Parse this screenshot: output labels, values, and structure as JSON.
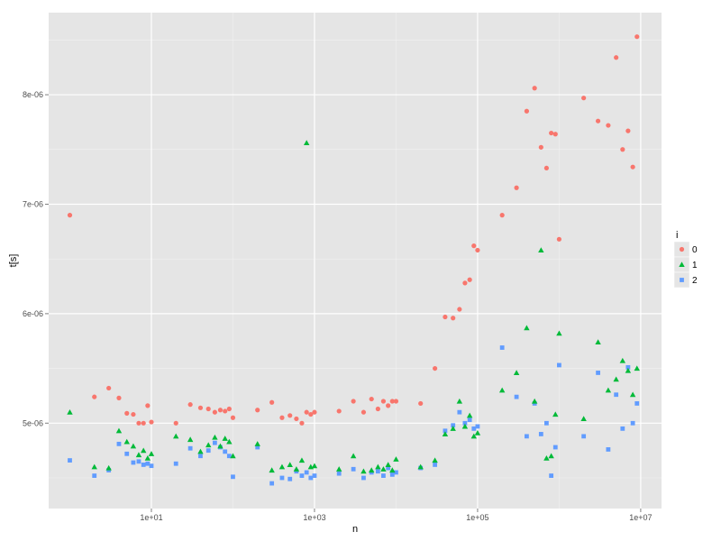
{
  "chart_data": {
    "type": "scatter",
    "xlabel": "n",
    "ylabel": "t[s]",
    "x_scale": "log10",
    "xlim": [
      0.55,
      18000000
    ],
    "ylim": [
      4.22e-06,
      8.75e-06
    ],
    "x_ticks": [
      10,
      1000,
      100000,
      10000000
    ],
    "x_tick_labels": [
      "1e+01",
      "1e+03",
      "1e+05",
      "1e+07"
    ],
    "y_ticks": [
      5e-06,
      6e-06,
      7e-06,
      8e-06
    ],
    "y_tick_labels": [
      "5e-06",
      "6e-06",
      "7e-06",
      "8e-06"
    ],
    "grid": true,
    "legend": {
      "title": "i",
      "position": "right"
    },
    "colors": {
      "panel": "#e5e5e5",
      "grid": "#ffffff",
      "grid_minor": "#f2f2f2"
    },
    "series": [
      {
        "name": "0",
        "color": "#f8766d",
        "shape": "circle",
        "x": [
          1,
          2,
          3,
          4,
          5,
          6,
          7,
          8,
          9,
          10,
          20,
          30,
          40,
          50,
          60,
          70,
          80,
          90,
          100,
          200,
          300,
          400,
          500,
          600,
          700,
          800,
          900,
          1000,
          2000,
          3000,
          4000,
          5000,
          6000,
          7000,
          8000,
          9000,
          10000,
          20000,
          30000,
          40000,
          50000,
          60000,
          70000,
          80000,
          90000,
          100000,
          200000,
          300000,
          400000,
          500000,
          600000,
          700000,
          800000,
          900000,
          1000000,
          2000000,
          3000000,
          4000000,
          5000000,
          6000000,
          7000000,
          8000000,
          9000000
        ],
        "y": [
          6.9e-06,
          5.24e-06,
          5.32e-06,
          5.23e-06,
          5.09e-06,
          5.08e-06,
          5e-06,
          5e-06,
          5.16e-06,
          5.01e-06,
          5e-06,
          5.17e-06,
          5.14e-06,
          5.13e-06,
          5.1e-06,
          5.12e-06,
          5.11e-06,
          5.13e-06,
          5.05e-06,
          5.12e-06,
          5.19e-06,
          5.05e-06,
          5.07e-06,
          5.04e-06,
          5e-06,
          5.1e-06,
          5.08e-06,
          5.1e-06,
          5.11e-06,
          5.2e-06,
          5.1e-06,
          5.22e-06,
          5.13e-06,
          5.2e-06,
          5.16e-06,
          5.2e-06,
          5.2e-06,
          5.18e-06,
          5.5e-06,
          5.97e-06,
          5.96e-06,
          6.04e-06,
          6.28e-06,
          6.31e-06,
          6.62e-06,
          6.58e-06,
          6.9e-06,
          7.15e-06,
          7.85e-06,
          8.06e-06,
          7.52e-06,
          7.33e-06,
          7.65e-06,
          7.64e-06,
          6.68e-06,
          7.97e-06,
          7.76e-06,
          7.72e-06,
          8.34e-06,
          7.5e-06,
          7.67e-06,
          7.34e-06,
          8.53e-06
        ]
      },
      {
        "name": "1",
        "color": "#00ba38",
        "shape": "triangle",
        "x": [
          1,
          2,
          3,
          4,
          5,
          6,
          7,
          8,
          9,
          10,
          20,
          30,
          40,
          50,
          60,
          70,
          80,
          90,
          100,
          200,
          300,
          400,
          500,
          600,
          700,
          800,
          900,
          1000,
          2000,
          3000,
          4000,
          5000,
          6000,
          7000,
          8000,
          9000,
          10000,
          20000,
          30000,
          40000,
          50000,
          60000,
          70000,
          80000,
          90000,
          100000,
          200000,
          300000,
          400000,
          500000,
          600000,
          700000,
          800000,
          900000,
          1000000,
          2000000,
          3000000,
          4000000,
          5000000,
          6000000,
          7000000,
          8000000,
          9000000
        ],
        "y": [
          5.1e-06,
          4.6e-06,
          4.59e-06,
          4.93e-06,
          4.83e-06,
          4.79e-06,
          4.71e-06,
          4.75e-06,
          4.68e-06,
          4.72e-06,
          4.88e-06,
          4.85e-06,
          4.74e-06,
          4.8e-06,
          4.87e-06,
          4.79e-06,
          4.86e-06,
          4.83e-06,
          4.7e-06,
          4.81e-06,
          4.57e-06,
          4.6e-06,
          4.62e-06,
          4.58e-06,
          4.66e-06,
          7.56e-06,
          4.6e-06,
          4.61e-06,
          4.58e-06,
          4.7e-06,
          4.56e-06,
          4.57e-06,
          4.6e-06,
          4.58e-06,
          4.62e-06,
          4.57e-06,
          4.67e-06,
          4.6e-06,
          4.66e-06,
          4.9e-06,
          4.95e-06,
          5.2e-06,
          4.97e-06,
          5.07e-06,
          4.88e-06,
          4.91e-06,
          5.3e-06,
          5.46e-06,
          5.87e-06,
          5.2e-06,
          6.58e-06,
          4.68e-06,
          4.7e-06,
          5.08e-06,
          5.82e-06,
          5.04e-06,
          5.74e-06,
          5.3e-06,
          5.4e-06,
          5.57e-06,
          5.48e-06,
          5.26e-06,
          5.5e-06
        ]
      },
      {
        "name": "2",
        "color": "#619cff",
        "shape": "square",
        "x": [
          1,
          2,
          3,
          4,
          5,
          6,
          7,
          8,
          9,
          10,
          20,
          30,
          40,
          50,
          60,
          70,
          80,
          90,
          100,
          200,
          300,
          400,
          500,
          600,
          700,
          800,
          900,
          1000,
          2000,
          3000,
          4000,
          5000,
          6000,
          7000,
          8000,
          9000,
          10000,
          20000,
          30000,
          40000,
          50000,
          60000,
          70000,
          80000,
          90000,
          100000,
          200000,
          300000,
          400000,
          500000,
          600000,
          700000,
          800000,
          900000,
          1000000,
          2000000,
          3000000,
          4000000,
          5000000,
          6000000,
          7000000,
          8000000,
          9000000
        ],
        "y": [
          4.66e-06,
          4.52e-06,
          4.57e-06,
          4.81e-06,
          4.72e-06,
          4.64e-06,
          4.65e-06,
          4.62e-06,
          4.63e-06,
          4.61e-06,
          4.63e-06,
          4.77e-06,
          4.7e-06,
          4.75e-06,
          4.82e-06,
          4.78e-06,
          4.74e-06,
          4.7e-06,
          4.51e-06,
          4.78e-06,
          4.45e-06,
          4.5e-06,
          4.49e-06,
          4.56e-06,
          4.52e-06,
          4.55e-06,
          4.5e-06,
          4.52e-06,
          4.54e-06,
          4.58e-06,
          4.5e-06,
          4.55e-06,
          4.56e-06,
          4.52e-06,
          4.59e-06,
          4.53e-06,
          4.55e-06,
          4.59e-06,
          4.62e-06,
          4.93e-06,
          4.98e-06,
          5.1e-06,
          5e-06,
          5.03e-06,
          4.95e-06,
          4.97e-06,
          5.69e-06,
          5.24e-06,
          4.88e-06,
          5.18e-06,
          4.9e-06,
          5e-06,
          4.52e-06,
          4.78e-06,
          5.53e-06,
          4.88e-06,
          5.46e-06,
          4.76e-06,
          5.26e-06,
          4.95e-06,
          5.51e-06,
          5e-06,
          5.18e-06
        ]
      }
    ]
  }
}
